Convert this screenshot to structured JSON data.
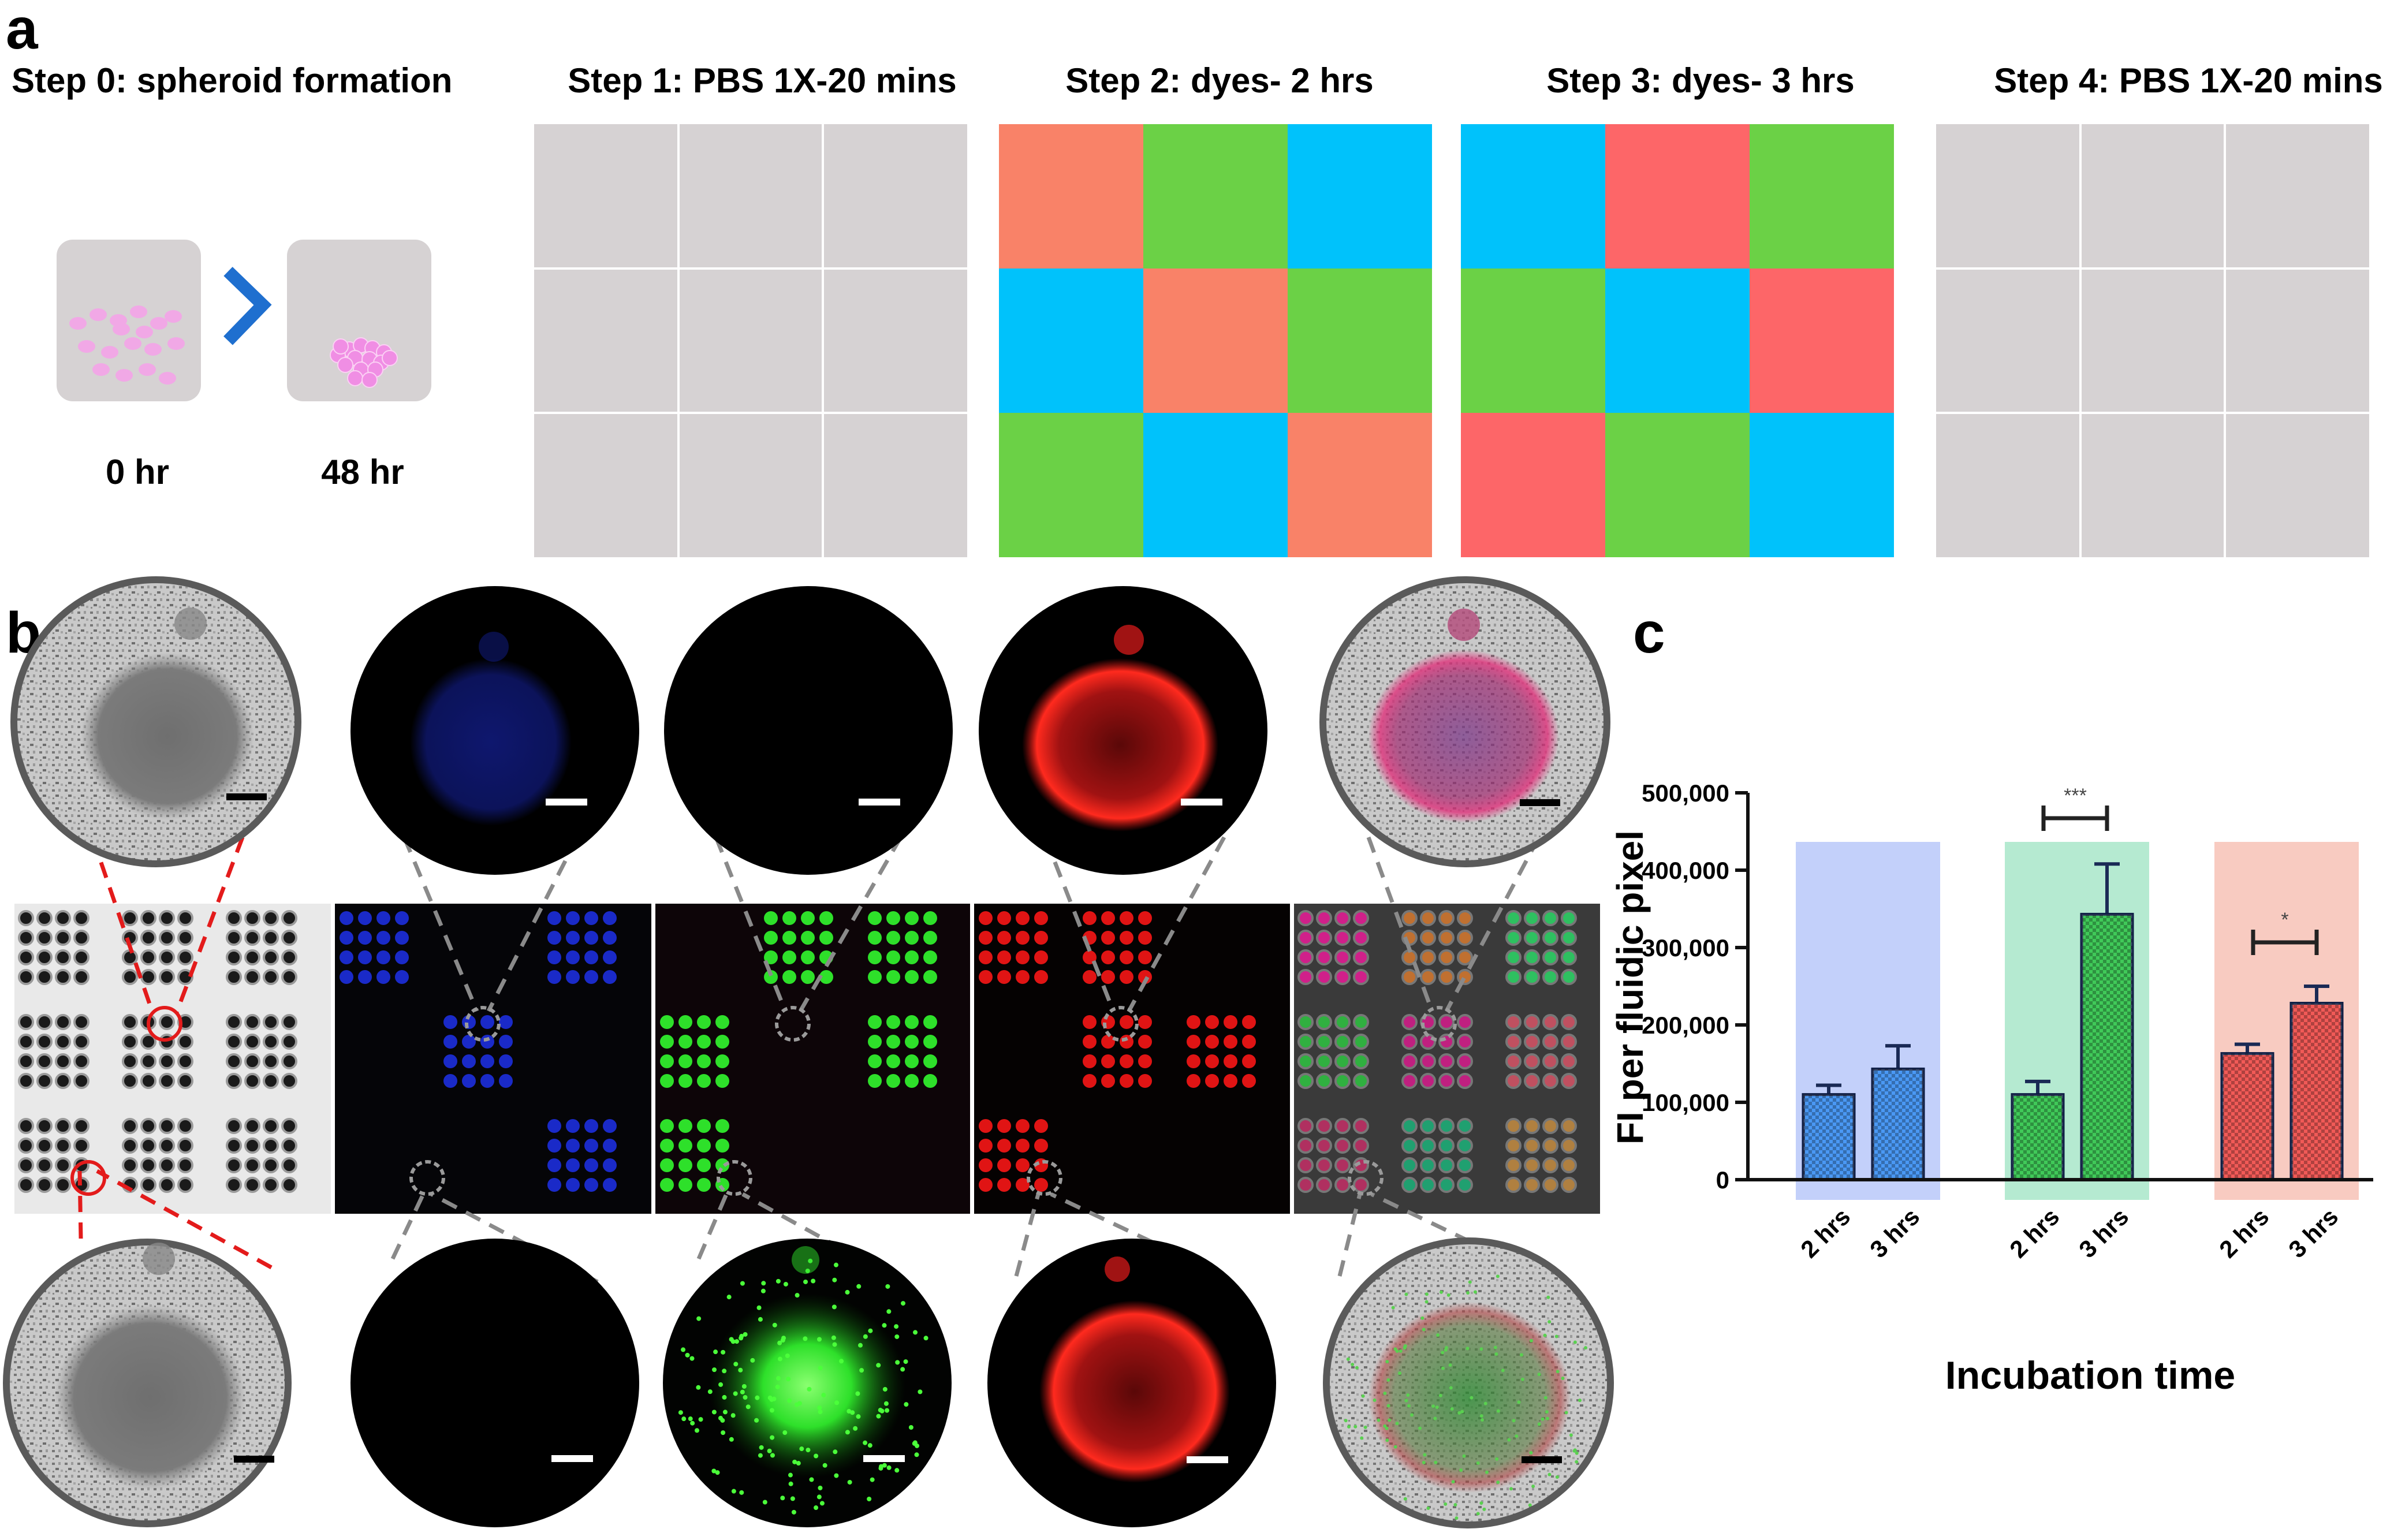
{
  "panel_a": {
    "letter": "a",
    "step0": {
      "title": "Step 0: spheroid formation",
      "t_start": "0 hr",
      "t_end": "48 hr"
    },
    "steps": [
      {
        "title": "Step 1: PBS 1X-20 mins",
        "cells": [
          "gray",
          "gray",
          "gray",
          "gray",
          "gray",
          "gray",
          "gray",
          "gray",
          "gray"
        ]
      },
      {
        "title": "Step 2: dyes- 2 hrs",
        "cells": [
          "salmon",
          "green",
          "blue",
          "blue",
          "salmon",
          "green",
          "green",
          "blue",
          "salmon"
        ]
      },
      {
        "title": "Step 3: dyes- 3 hrs",
        "cells": [
          "blue",
          "red",
          "green",
          "green",
          "blue",
          "red",
          "red",
          "green",
          "blue"
        ]
      },
      {
        "title": "Step 4: PBS 1X-20 mins",
        "cells": [
          "gray",
          "gray",
          "gray",
          "gray",
          "gray",
          "gray",
          "gray",
          "gray",
          "gray"
        ]
      }
    ],
    "colors": {
      "gray": "#d6d2d3",
      "salmon": "#f98268",
      "green": "#6bd146",
      "blue": "#00c2fb",
      "red": "#fd6668",
      "arrow": "#1f6fcf",
      "cell_pink": "#f1a8e6"
    }
  },
  "panel_b": {
    "letter": "b",
    "channels": [
      "brightfield",
      "blue",
      "green",
      "red",
      "merge"
    ],
    "colors": {
      "blue": "#1a2ac8",
      "green": "#2ee02a",
      "red": "#e01414",
      "magenta": "#d0208a",
      "zoom_red": "#e31b1b",
      "zoom_gray": "#8a8a8a"
    }
  },
  "panel_c": {
    "letter": "c",
    "chart_data": {
      "type": "bar",
      "ylabel": "FI per fluidic pixel",
      "xlabel": "Incubation time",
      "ylim": [
        0,
        500000
      ],
      "yticks": [
        "0",
        "100,000",
        "200,000",
        "300,000",
        "400,000",
        "500,000"
      ],
      "groups": [
        {
          "band": "#b9c8f9",
          "bar_color": "#2a86f2",
          "categories": [
            "2 hrs",
            "3 hrs"
          ],
          "values": [
            110000,
            143000
          ],
          "errors": [
            12000,
            30000
          ],
          "significance": ""
        },
        {
          "band": "#a8e6c9",
          "bar_color": "#1fbf3c",
          "categories": [
            "2 hrs",
            "3 hrs"
          ],
          "values": [
            110000,
            343000
          ],
          "errors": [
            17000,
            65000
          ],
          "significance": "***"
        },
        {
          "band": "#f7c2b6",
          "bar_color": "#ee3d3a",
          "categories": [
            "2 hrs",
            "3 hrs"
          ],
          "values": [
            163000,
            228000
          ],
          "errors": [
            12000,
            22000
          ],
          "significance": "*"
        }
      ]
    }
  }
}
